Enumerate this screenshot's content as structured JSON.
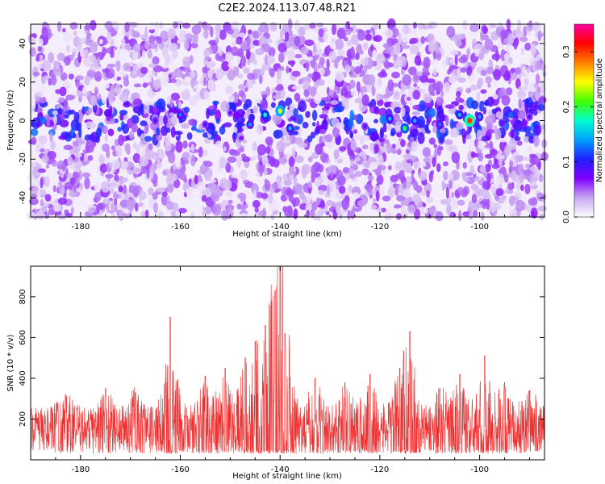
{
  "title": "C2E2.2024.113.07.48.R21",
  "chart_data": [
    {
      "type": "heatmap",
      "xlabel": "Height of straight line (km)",
      "ylabel": "Frequency (Hz)",
      "xlim": [
        -190,
        -87
      ],
      "ylim": [
        -50,
        50
      ],
      "x_ticks": [
        -180,
        -160,
        -140,
        -120,
        -100
      ],
      "y_ticks": [
        -40,
        -20,
        0,
        20,
        40
      ],
      "colorbar": {
        "label": "Normalized spectral amplitude",
        "range": [
          0,
          0.35
        ],
        "ticks": [
          0.0,
          0.1,
          0.2,
          0.3
        ],
        "colormap": [
          "#ffffff",
          "#c9a8f0",
          "#8000ff",
          "#2020ff",
          "#00a0ff",
          "#00ffd0",
          "#40ff00",
          "#ffff00",
          "#ff8000",
          "#ff0000",
          "#ff00a0"
        ]
      },
      "background_level": 0.04,
      "hotspot_band_hz": [
        -10,
        10
      ],
      "hotspots": [
        {
          "x": -165,
          "y": 0,
          "value": 0.1
        },
        {
          "x": -160,
          "y": 3,
          "value": 0.13
        },
        {
          "x": -155,
          "y": -2,
          "value": 0.1
        },
        {
          "x": -150,
          "y": 4,
          "value": 0.09
        },
        {
          "x": -146,
          "y": -2,
          "value": 0.14
        },
        {
          "x": -143,
          "y": 3,
          "value": 0.18
        },
        {
          "x": -140,
          "y": 5,
          "value": 0.24
        },
        {
          "x": -138,
          "y": -4,
          "value": 0.15
        },
        {
          "x": -123,
          "y": -3,
          "value": 0.1
        },
        {
          "x": -118,
          "y": 1,
          "value": 0.15
        },
        {
          "x": -115,
          "y": -4,
          "value": 0.2
        },
        {
          "x": -113,
          "y": 0,
          "value": 0.15
        },
        {
          "x": -108,
          "y": -2,
          "value": 0.13
        },
        {
          "x": -104,
          "y": 3,
          "value": 0.15
        },
        {
          "x": -102,
          "y": 0,
          "value": 0.3
        },
        {
          "x": -100,
          "y": 2,
          "value": 0.14
        },
        {
          "x": -90,
          "y": 2,
          "value": 0.1
        }
      ]
    },
    {
      "type": "line",
      "color": "#f03030",
      "xlabel": "Height of straight line (km)",
      "ylabel": "SNR (10 * v/v)",
      "xlim": [
        -190,
        -87
      ],
      "ylim": [
        0,
        950
      ],
      "x_ticks": [
        -180,
        -160,
        -140,
        -120,
        -100
      ],
      "y_ticks": [
        200,
        400,
        600,
        800
      ],
      "baseline": {
        "mean": 150,
        "spread": 110,
        "floor": 30
      },
      "peaks": [
        {
          "x": -183,
          "y": 320
        },
        {
          "x": -175,
          "y": 350
        },
        {
          "x": -169,
          "y": 330
        },
        {
          "x": -162,
          "y": 700
        },
        {
          "x": -155,
          "y": 410
        },
        {
          "x": -151,
          "y": 450
        },
        {
          "x": -147,
          "y": 500
        },
        {
          "x": -145,
          "y": 580
        },
        {
          "x": -143,
          "y": 660
        },
        {
          "x": -141,
          "y": 830
        },
        {
          "x": -140,
          "y": 950
        },
        {
          "x": -139,
          "y": 620
        },
        {
          "x": -133,
          "y": 400
        },
        {
          "x": -127,
          "y": 380
        },
        {
          "x": -122,
          "y": 420
        },
        {
          "x": -116,
          "y": 450
        },
        {
          "x": -114,
          "y": 630
        },
        {
          "x": -108,
          "y": 350
        },
        {
          "x": -104,
          "y": 420
        },
        {
          "x": -99,
          "y": 510
        },
        {
          "x": -95,
          "y": 380
        },
        {
          "x": -90,
          "y": 340
        }
      ]
    }
  ]
}
